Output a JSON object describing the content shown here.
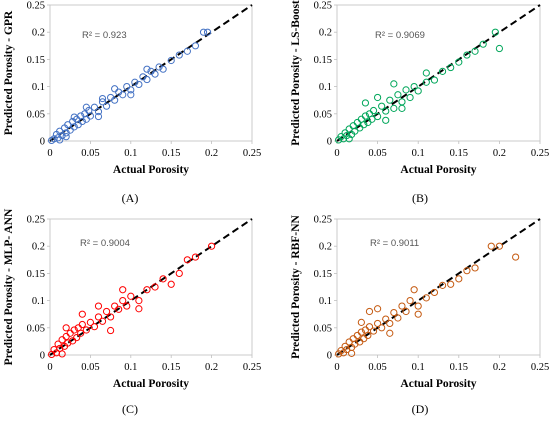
{
  "chart_data": [
    {
      "type": "scatter",
      "caption": "(A)",
      "r2": "R² = 0.923",
      "xlabel": "Actual Porosity",
      "ylabel": "Predicted Porosity - GPR",
      "xlim": [
        0,
        0.25
      ],
      "ylim": [
        0,
        0.25
      ],
      "xticks": [
        "0",
        "0.05",
        "0.1",
        "0.15",
        "0.2",
        "0.25"
      ],
      "yticks": [
        "0",
        "0.05",
        "0.1",
        "0.15",
        "0.2",
        "0.25"
      ],
      "color": "#4472C4",
      "grid": false,
      "reference_line": "y = x (dashed)",
      "points": [
        [
          0.002,
          0.001
        ],
        [
          0.005,
          0.004
        ],
        [
          0.008,
          0.012
        ],
        [
          0.01,
          0.006
        ],
        [
          0.012,
          0.018
        ],
        [
          0.015,
          0.01
        ],
        [
          0.018,
          0.024
        ],
        [
          0.02,
          0.015
        ],
        [
          0.022,
          0.03
        ],
        [
          0.025,
          0.02
        ],
        [
          0.028,
          0.036
        ],
        [
          0.03,
          0.026
        ],
        [
          0.033,
          0.04
        ],
        [
          0.035,
          0.03
        ],
        [
          0.038,
          0.046
        ],
        [
          0.04,
          0.036
        ],
        [
          0.043,
          0.05
        ],
        [
          0.045,
          0.04
        ],
        [
          0.048,
          0.056
        ],
        [
          0.05,
          0.046
        ],
        [
          0.055,
          0.062
        ],
        [
          0.06,
          0.054
        ],
        [
          0.065,
          0.072
        ],
        [
          0.07,
          0.064
        ],
        [
          0.075,
          0.08
        ],
        [
          0.08,
          0.075
        ],
        [
          0.085,
          0.09
        ],
        [
          0.09,
          0.085
        ],
        [
          0.095,
          0.1
        ],
        [
          0.1,
          0.094
        ],
        [
          0.105,
          0.108
        ],
        [
          0.11,
          0.104
        ],
        [
          0.115,
          0.118
        ],
        [
          0.12,
          0.113
        ],
        [
          0.125,
          0.128
        ],
        [
          0.13,
          0.123
        ],
        [
          0.135,
          0.136
        ],
        [
          0.14,
          0.132
        ],
        [
          0.15,
          0.148
        ],
        [
          0.16,
          0.158
        ],
        [
          0.17,
          0.165
        ],
        [
          0.18,
          0.175
        ],
        [
          0.19,
          0.2
        ],
        [
          0.195,
          0.2
        ],
        [
          0.012,
          0.002
        ],
        [
          0.02,
          0.008
        ],
        [
          0.03,
          0.044
        ],
        [
          0.045,
          0.062
        ],
        [
          0.06,
          0.045
        ],
        [
          0.08,
          0.096
        ],
        [
          0.1,
          0.085
        ],
        [
          0.12,
          0.132
        ],
        [
          0.065,
          0.078
        ]
      ]
    },
    {
      "type": "scatter",
      "caption": "(B)",
      "r2": "R² = 0.9069",
      "xlabel": "Actual Porosity",
      "ylabel": "Predicted Porosity - LS-Boost",
      "xlim": [
        0,
        0.25
      ],
      "ylim": [
        0,
        0.25
      ],
      "xticks": [
        "0",
        "0.05",
        "0.1",
        "0.15",
        "0.2",
        "0.25"
      ],
      "yticks": [
        "0",
        "0.05",
        "0.1",
        "0.15",
        "0.2",
        "0.25"
      ],
      "color": "#00A65A",
      "grid": false,
      "reference_line": "y = x (dashed)",
      "points": [
        [
          0.002,
          0.002
        ],
        [
          0.005,
          0.008
        ],
        [
          0.008,
          0.004
        ],
        [
          0.01,
          0.015
        ],
        [
          0.012,
          0.01
        ],
        [
          0.015,
          0.022
        ],
        [
          0.018,
          0.012
        ],
        [
          0.02,
          0.028
        ],
        [
          0.022,
          0.018
        ],
        [
          0.025,
          0.034
        ],
        [
          0.028,
          0.024
        ],
        [
          0.03,
          0.04
        ],
        [
          0.033,
          0.03
        ],
        [
          0.035,
          0.046
        ],
        [
          0.038,
          0.034
        ],
        [
          0.04,
          0.05
        ],
        [
          0.043,
          0.04
        ],
        [
          0.045,
          0.056
        ],
        [
          0.05,
          0.045
        ],
        [
          0.055,
          0.064
        ],
        [
          0.06,
          0.055
        ],
        [
          0.065,
          0.075
        ],
        [
          0.07,
          0.06
        ],
        [
          0.075,
          0.085
        ],
        [
          0.08,
          0.072
        ],
        [
          0.085,
          0.094
        ],
        [
          0.09,
          0.08
        ],
        [
          0.095,
          0.1
        ],
        [
          0.1,
          0.092
        ],
        [
          0.11,
          0.108
        ],
        [
          0.12,
          0.112
        ],
        [
          0.13,
          0.128
        ],
        [
          0.14,
          0.135
        ],
        [
          0.15,
          0.145
        ],
        [
          0.16,
          0.158
        ],
        [
          0.17,
          0.165
        ],
        [
          0.18,
          0.178
        ],
        [
          0.195,
          0.2
        ],
        [
          0.2,
          0.17
        ],
        [
          0.035,
          0.07
        ],
        [
          0.05,
          0.08
        ],
        [
          0.07,
          0.105
        ],
        [
          0.11,
          0.125
        ],
        [
          0.08,
          0.06
        ],
        [
          0.06,
          0.038
        ],
        [
          0.015,
          0.004
        ]
      ]
    },
    {
      "type": "scatter",
      "caption": "(C)",
      "r2": "R² = 0.9004",
      "xlabel": "Actual Porosity",
      "ylabel": "Predicted Porosity - MLP- ANN",
      "xlim": [
        0,
        0.25
      ],
      "ylim": [
        0,
        0.25
      ],
      "xticks": [
        "0",
        "0.05",
        "0.1",
        "0.15",
        "0.2",
        "0.25"
      ],
      "yticks": [
        "0",
        "0.05",
        "0.1",
        "0.15",
        "0.2",
        "0.25"
      ],
      "color": "#FF0000",
      "grid": false,
      "reference_line": "y = x (dashed)",
      "points": [
        [
          0.002,
          0.001
        ],
        [
          0.005,
          0.01
        ],
        [
          0.008,
          0.004
        ],
        [
          0.01,
          0.02
        ],
        [
          0.012,
          0.012
        ],
        [
          0.015,
          0.028
        ],
        [
          0.018,
          0.016
        ],
        [
          0.02,
          0.034
        ],
        [
          0.022,
          0.022
        ],
        [
          0.025,
          0.04
        ],
        [
          0.028,
          0.026
        ],
        [
          0.03,
          0.046
        ],
        [
          0.033,
          0.032
        ],
        [
          0.035,
          0.05
        ],
        [
          0.038,
          0.04
        ],
        [
          0.04,
          0.056
        ],
        [
          0.045,
          0.046
        ],
        [
          0.05,
          0.06
        ],
        [
          0.055,
          0.052
        ],
        [
          0.06,
          0.07
        ],
        [
          0.065,
          0.062
        ],
        [
          0.07,
          0.08
        ],
        [
          0.075,
          0.07
        ],
        [
          0.08,
          0.09
        ],
        [
          0.085,
          0.084
        ],
        [
          0.09,
          0.1
        ],
        [
          0.095,
          0.09
        ],
        [
          0.1,
          0.108
        ],
        [
          0.11,
          0.1
        ],
        [
          0.12,
          0.12
        ],
        [
          0.13,
          0.125
        ],
        [
          0.14,
          0.14
        ],
        [
          0.15,
          0.13
        ],
        [
          0.16,
          0.15
        ],
        [
          0.17,
          0.175
        ],
        [
          0.18,
          0.18
        ],
        [
          0.2,
          0.2
        ],
        [
          0.04,
          0.075
        ],
        [
          0.06,
          0.09
        ],
        [
          0.09,
          0.12
        ],
        [
          0.11,
          0.085
        ],
        [
          0.075,
          0.045
        ],
        [
          0.02,
          0.05
        ],
        [
          0.015,
          0.002
        ]
      ]
    },
    {
      "type": "scatter",
      "caption": "(D)",
      "r2": "R² = 0.9011",
      "xlabel": "Actual Porosity",
      "ylabel": "Predicted Porosity - RBF-NN",
      "xlim": [
        0,
        0.25
      ],
      "ylim": [
        0,
        0.25
      ],
      "xticks": [
        "0",
        "0.05",
        "0.1",
        "0.15",
        "0.2",
        "0.25"
      ],
      "yticks": [
        "0",
        "0.05",
        "0.1",
        "0.15",
        "0.2",
        "0.25"
      ],
      "color": "#C55A11",
      "grid": false,
      "reference_line": "y = x (dashed)",
      "points": [
        [
          0.002,
          0.002
        ],
        [
          0.005,
          0.008
        ],
        [
          0.008,
          0.004
        ],
        [
          0.01,
          0.016
        ],
        [
          0.012,
          0.01
        ],
        [
          0.015,
          0.024
        ],
        [
          0.018,
          0.014
        ],
        [
          0.02,
          0.03
        ],
        [
          0.022,
          0.02
        ],
        [
          0.025,
          0.036
        ],
        [
          0.028,
          0.024
        ],
        [
          0.03,
          0.042
        ],
        [
          0.033,
          0.03
        ],
        [
          0.035,
          0.046
        ],
        [
          0.038,
          0.036
        ],
        [
          0.04,
          0.052
        ],
        [
          0.045,
          0.044
        ],
        [
          0.05,
          0.058
        ],
        [
          0.055,
          0.05
        ],
        [
          0.06,
          0.066
        ],
        [
          0.065,
          0.058
        ],
        [
          0.07,
          0.078
        ],
        [
          0.075,
          0.068
        ],
        [
          0.08,
          0.09
        ],
        [
          0.085,
          0.08
        ],
        [
          0.09,
          0.1
        ],
        [
          0.1,
          0.09
        ],
        [
          0.11,
          0.105
        ],
        [
          0.12,
          0.115
        ],
        [
          0.13,
          0.128
        ],
        [
          0.14,
          0.13
        ],
        [
          0.15,
          0.14
        ],
        [
          0.16,
          0.155
        ],
        [
          0.17,
          0.16
        ],
        [
          0.19,
          0.2
        ],
        [
          0.2,
          0.2
        ],
        [
          0.22,
          0.18
        ],
        [
          0.04,
          0.08
        ],
        [
          0.05,
          0.085
        ],
        [
          0.095,
          0.12
        ],
        [
          0.1,
          0.075
        ],
        [
          0.065,
          0.04
        ],
        [
          0.03,
          0.06
        ],
        [
          0.018,
          0.003
        ]
      ]
    }
  ]
}
